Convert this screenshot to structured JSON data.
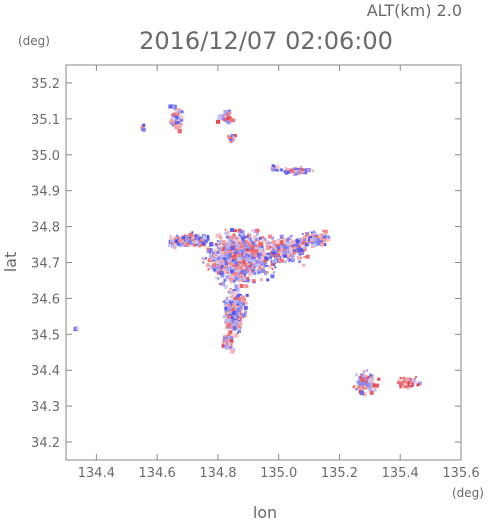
{
  "header": {
    "alt_label": "ALT(km)  2.0",
    "datetime": "2016/12/07 02:06:00"
  },
  "chart_data": {
    "type": "heatmap",
    "title": "2016/12/07 02:06:00",
    "subtitle": "ALT(km)  2.0",
    "xlabel": "lon",
    "ylabel": "lat",
    "x_unit": "(deg)",
    "y_unit": "(deg)",
    "xlim": [
      134.3,
      135.6
    ],
    "ylim": [
      34.15,
      35.25
    ],
    "xticks": [
      134.4,
      134.6,
      134.8,
      135.0,
      135.2,
      135.4,
      135.6
    ],
    "xtick_labels": [
      "134.4",
      "134.6",
      "134.8",
      "135.0",
      "135.2",
      "135.4",
      "135.6"
    ],
    "yticks": [
      34.2,
      34.3,
      34.4,
      34.5,
      34.6,
      34.7,
      34.8,
      34.9,
      35.0,
      35.1,
      35.2
    ],
    "ytick_labels": [
      "34.2",
      "34.3",
      "34.4",
      "34.5",
      "34.6",
      "34.7",
      "34.8",
      "34.9",
      "35.0",
      "35.1",
      "35.2"
    ],
    "grid": false,
    "colors": {
      "positive": "#e8383d",
      "negative": "#4848ee",
      "neutral": "#ffffff"
    },
    "clusters": [
      {
        "lon": 134.87,
        "lat": 34.72,
        "rlon": 0.14,
        "rlat": 0.09,
        "n": 900,
        "bias": 0.0
      },
      {
        "lon": 134.7,
        "lat": 34.765,
        "rlon": 0.1,
        "rlat": 0.025,
        "n": 170,
        "bias": -0.2
      },
      {
        "lon": 135.02,
        "lat": 34.74,
        "rlon": 0.09,
        "rlat": 0.05,
        "n": 220,
        "bias": -0.1
      },
      {
        "lon": 135.12,
        "lat": 34.77,
        "rlon": 0.07,
        "rlat": 0.025,
        "n": 90,
        "bias": -0.3
      },
      {
        "lon": 134.85,
        "lat": 34.57,
        "rlon": 0.05,
        "rlat": 0.08,
        "n": 260,
        "bias": -0.2
      },
      {
        "lon": 134.83,
        "lat": 34.48,
        "rlon": 0.025,
        "rlat": 0.03,
        "n": 40,
        "bias": 0.1
      },
      {
        "lon": 134.66,
        "lat": 35.11,
        "rlon": 0.03,
        "rlat": 0.05,
        "n": 70,
        "bias": -0.1
      },
      {
        "lon": 134.82,
        "lat": 35.11,
        "rlon": 0.035,
        "rlat": 0.02,
        "n": 45,
        "bias": 0.2
      },
      {
        "lon": 134.84,
        "lat": 35.05,
        "rlon": 0.02,
        "rlat": 0.015,
        "n": 18,
        "bias": 0.0
      },
      {
        "lon": 135.06,
        "lat": 34.96,
        "rlon": 0.07,
        "rlat": 0.012,
        "n": 60,
        "bias": -0.1
      },
      {
        "lon": 134.98,
        "lat": 34.965,
        "rlon": 0.02,
        "rlat": 0.01,
        "n": 14,
        "bias": -0.4
      },
      {
        "lon": 135.28,
        "lat": 34.37,
        "rlon": 0.05,
        "rlat": 0.04,
        "n": 110,
        "bias": 0.1
      },
      {
        "lon": 135.42,
        "lat": 34.37,
        "rlon": 0.05,
        "rlat": 0.02,
        "n": 55,
        "bias": 0.3
      },
      {
        "lon": 134.55,
        "lat": 35.08,
        "rlon": 0.008,
        "rlat": 0.008,
        "n": 6,
        "bias": -0.2
      },
      {
        "lon": 134.33,
        "lat": 34.52,
        "rlon": 0.008,
        "rlat": 0.006,
        "n": 5,
        "bias": -0.6
      }
    ]
  }
}
